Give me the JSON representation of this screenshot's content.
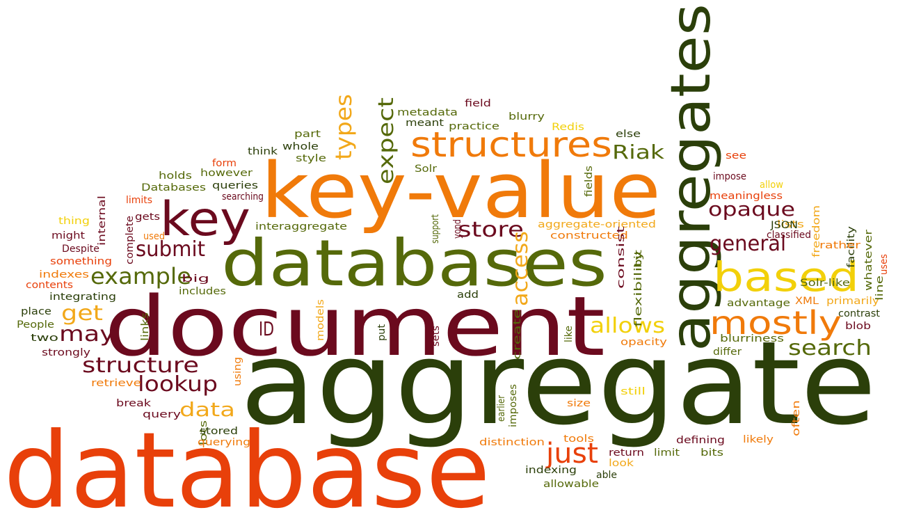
{
  "palette": {
    "orange_red": "#e8400a",
    "dark_green": "#2b3f0a",
    "olive": "#55690a",
    "maroon": "#6b0a1e",
    "orange": "#f07a0a",
    "yellow": "#f2d00a",
    "gold": "#f2a81a"
  },
  "words": [
    "aggregate",
    "database",
    "document",
    "key-value",
    "databases",
    "aggregates",
    "key",
    "structures",
    "based",
    "mostly",
    "example",
    "expect",
    "types",
    "store",
    "general",
    "opaque",
    "structure",
    "submit",
    "lookup",
    "access",
    "allows",
    "search",
    "Riak",
    "may",
    "get",
    "data",
    "ID",
    "just",
    "metadata",
    "meant",
    "practice",
    "field",
    "blurry",
    "Redis",
    "else",
    "part",
    "whole",
    "style",
    "think",
    "form",
    "holds",
    "however",
    "Databases",
    "queries",
    "searching",
    "limits",
    "gets",
    "internal",
    "thing",
    "might",
    "used",
    "complete",
    "Despite",
    "something",
    "indexes",
    "contents",
    "integrating",
    "big",
    "includes",
    "place",
    "People",
    "two",
    "strongly",
    "links",
    "models",
    "put",
    "sets",
    "using",
    "retrieve",
    "break",
    "query",
    "lots",
    "stored",
    "querying",
    "interaggregate",
    "aggregate-oriented",
    "constructed",
    "support",
    "yond",
    "Solr",
    "fields",
    "consist",
    "flexibility",
    "bit",
    "create",
    "like",
    "add",
    "advantage",
    "XML",
    "primarily",
    "contrast",
    "blob",
    "line",
    "uses",
    "whatever",
    "facility",
    "freedom",
    "lists",
    "rather",
    "Solr-like",
    "classified",
    "JSON",
    "meaningless",
    "allow",
    "impose",
    "see",
    "opacity",
    "blurriness",
    "differ",
    "still",
    "often",
    "size",
    "earlier",
    "imposes",
    "distinction",
    "tools",
    "return",
    "look",
    "limit",
    "bits",
    "defining",
    "likely",
    "indexing",
    "able",
    "allowable"
  ]
}
